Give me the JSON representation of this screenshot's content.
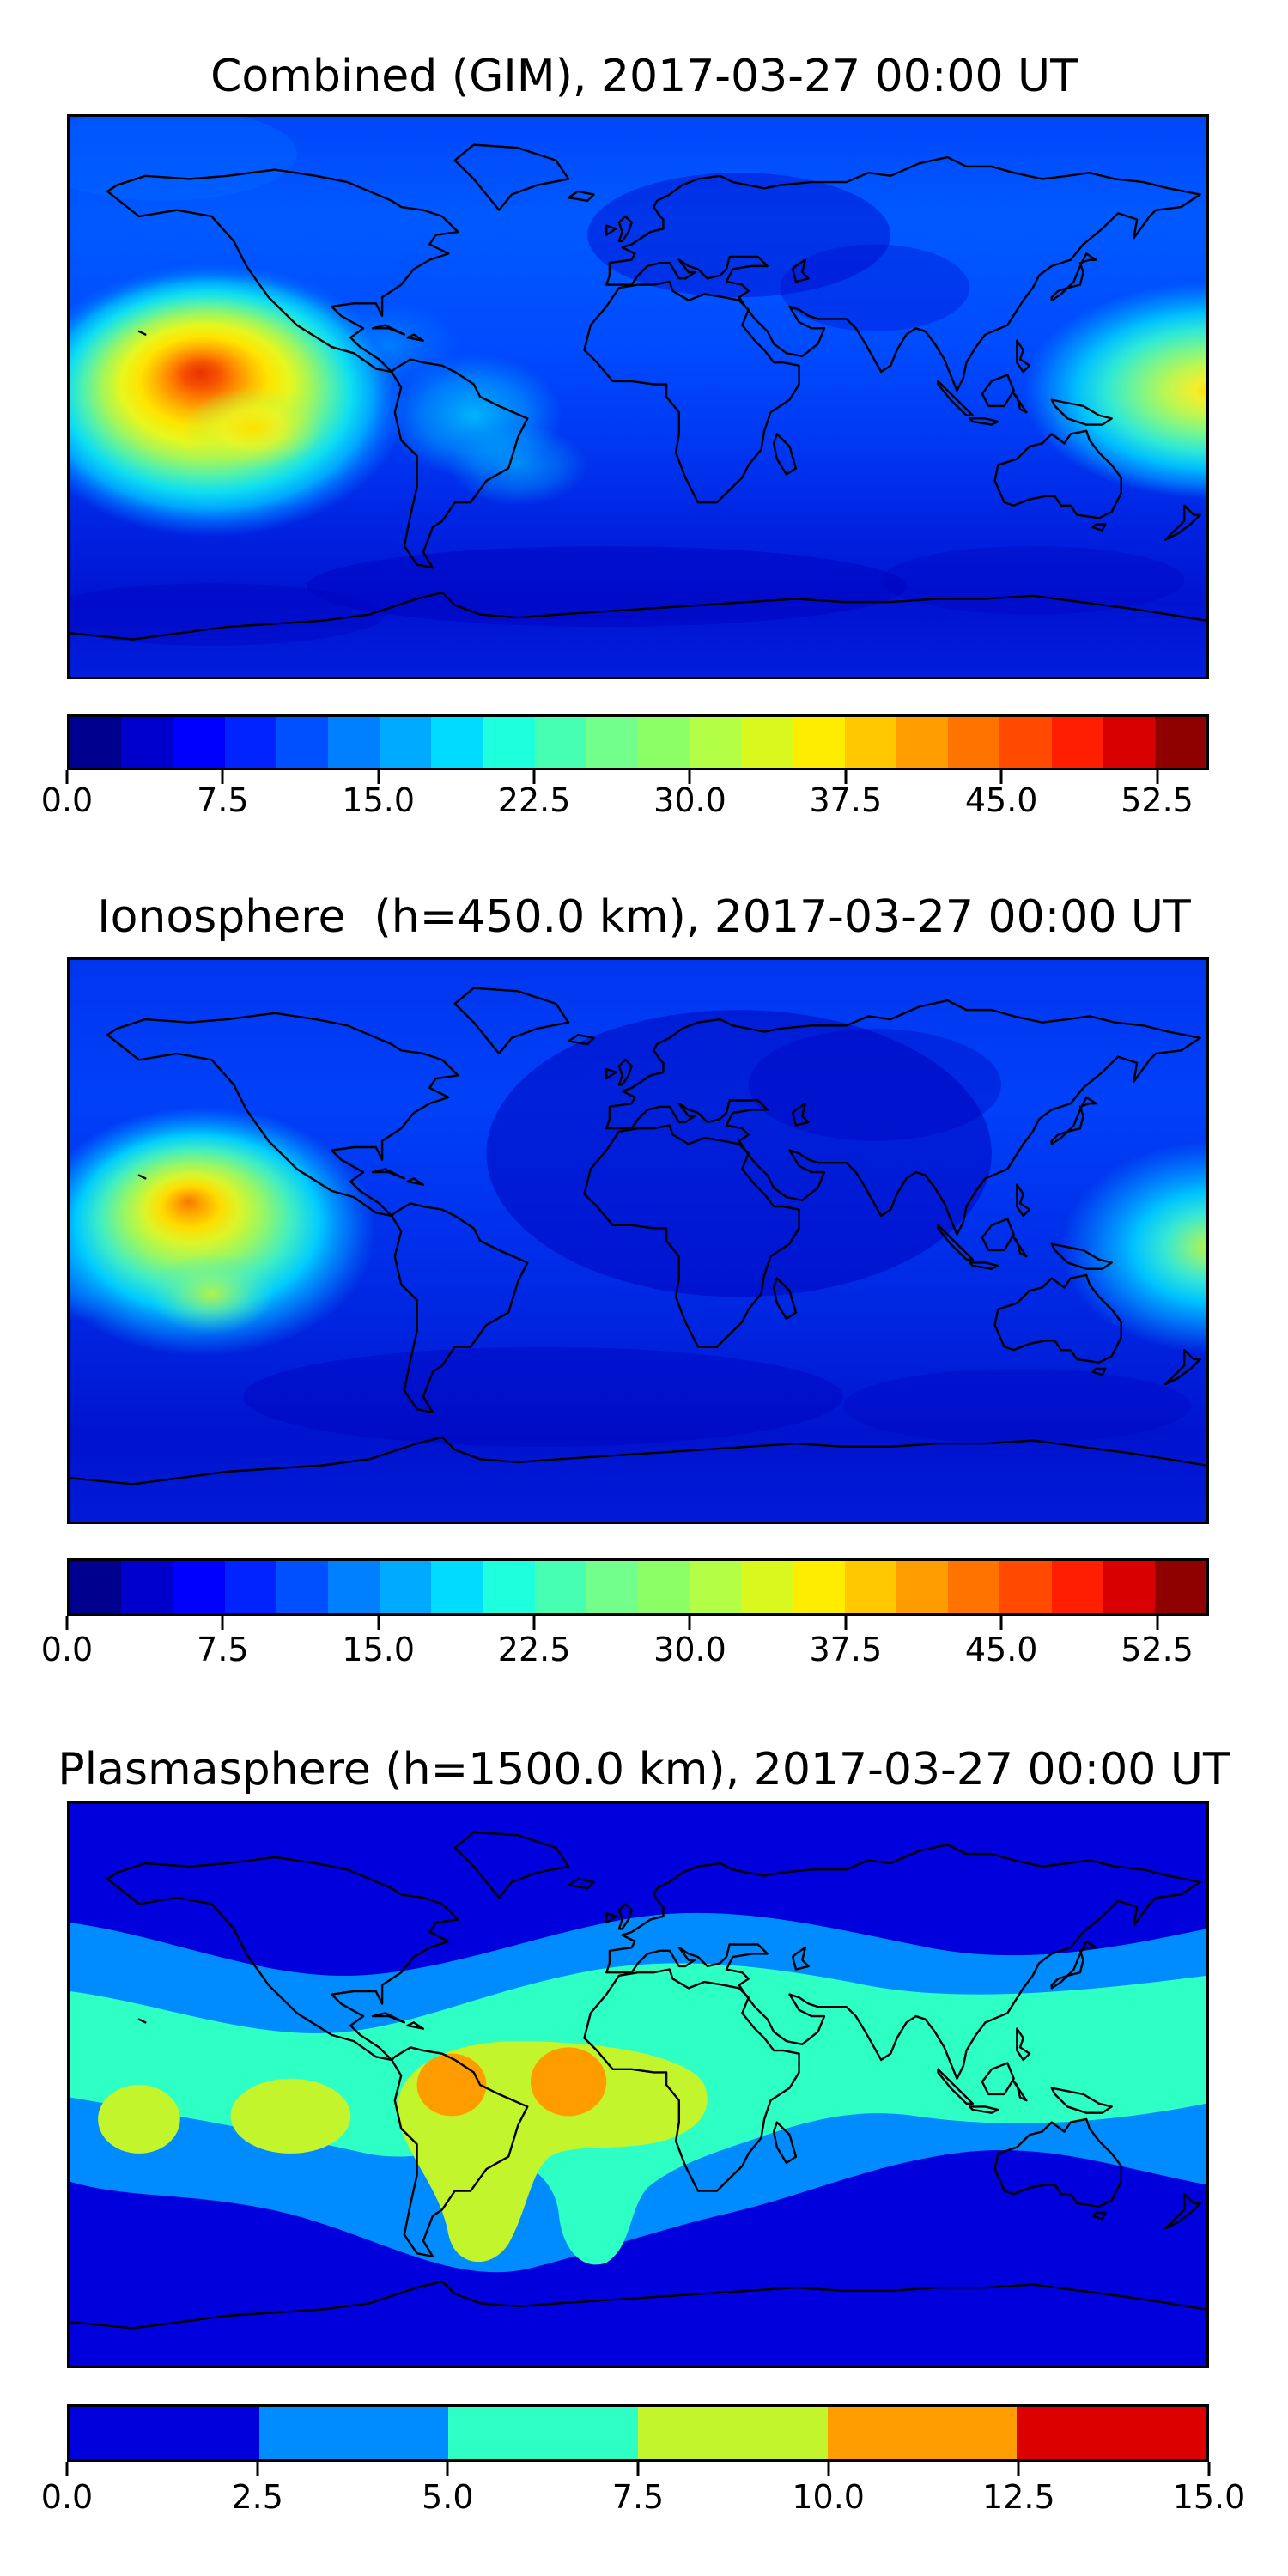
{
  "chart_data": [
    {
      "type": "heatmap",
      "subtype": "filled-contour-world-map",
      "title": "Combined (GIM), 2017-03-27 00:00 UT",
      "projection": "equirectangular",
      "lon_range": [
        -180,
        180
      ],
      "lat_range": [
        -90,
        90
      ],
      "colormap": "jet (discrete)",
      "value_range": [
        0,
        55
      ],
      "contour_step": 2.5,
      "grid": "off",
      "legend": "horizontal colorbar below map",
      "colorbar": {
        "orientation": "horizontal",
        "tick_values": [
          0,
          7.5,
          15,
          22.5,
          30,
          37.5,
          45,
          52.5
        ],
        "tick_labels": [
          "0.0",
          "7.5",
          "15.0",
          "22.5",
          "30.0",
          "37.5",
          "45.0",
          "52.5"
        ],
        "segment_colors": [
          "#00008F",
          "#0000CC",
          "#0000FF",
          "#0023FF",
          "#0050FF",
          "#0080FF",
          "#00AAFF",
          "#00DCFF",
          "#1EFFDE",
          "#47FFB0",
          "#72FF8C",
          "#8CFF66",
          "#B2FF46",
          "#D8F81E",
          "#FFED00",
          "#FFC800",
          "#FF9C00",
          "#FF7300",
          "#FF4A00",
          "#FF1E00",
          "#D80000",
          "#8F0000"
        ]
      },
      "features": [
        {
          "label": "primary peak (equatorial anomaly, east Pacific)",
          "lon": -139,
          "lat": 8,
          "approx_value": 53
        },
        {
          "label": "secondary enhancement near dateline / west Pacific",
          "lon": 178,
          "lat": -2,
          "approx_value": 40
        },
        {
          "label": "background minimum over Europe-Africa sector and southern mid-latitudes",
          "lon": 20,
          "lat": -45,
          "approx_value": 4
        }
      ]
    },
    {
      "type": "heatmap",
      "subtype": "filled-contour-world-map",
      "title": "Ionosphere  (h=450.0 km), 2017-03-27 00:00 UT",
      "projection": "equirectangular",
      "lon_range": [
        -180,
        180
      ],
      "lat_range": [
        -90,
        90
      ],
      "colormap": "jet (discrete)",
      "value_range": [
        0,
        55
      ],
      "contour_step": 2.5,
      "grid": "off",
      "legend": "horizontal colorbar below map",
      "colorbar": {
        "orientation": "horizontal",
        "tick_values": [
          0,
          7.5,
          15,
          22.5,
          30,
          37.5,
          45,
          52.5
        ],
        "tick_labels": [
          "0.0",
          "7.5",
          "15.0",
          "22.5",
          "30.0",
          "37.5",
          "45.0",
          "52.5"
        ],
        "segment_colors": [
          "#00008F",
          "#0000CC",
          "#0000FF",
          "#0023FF",
          "#0050FF",
          "#0080FF",
          "#00AAFF",
          "#00DCFF",
          "#1EFFDE",
          "#47FFB0",
          "#72FF8C",
          "#8CFF66",
          "#B2FF46",
          "#D8F81E",
          "#FFED00",
          "#FFC800",
          "#FF9C00",
          "#FF7300",
          "#FF4A00",
          "#FF1E00",
          "#D80000",
          "#8F0000"
        ]
      },
      "features": [
        {
          "label": "primary peak (east Pacific, weaker than combined map)",
          "lon": -138,
          "lat": 9,
          "approx_value": 44
        },
        {
          "label": "secondary enhancement at map right edge near dateline",
          "lon": 180,
          "lat": -3,
          "approx_value": 32
        },
        {
          "label": "deep minimum over Europe / Africa / Indian Ocean sector",
          "lon": 30,
          "lat": 10,
          "approx_value": 3
        }
      ]
    },
    {
      "type": "heatmap",
      "subtype": "filled-contour-world-map",
      "title": "Plasmasphere (h=1500.0 km), 2017-03-27 00:00 UT",
      "projection": "equirectangular",
      "lon_range": [
        -180,
        180
      ],
      "lat_range": [
        -90,
        90
      ],
      "colormap": "jet (discrete, 6 levels)",
      "value_range": [
        0,
        15
      ],
      "contour_step": 2.5,
      "grid": "off",
      "legend": "horizontal colorbar below map",
      "colorbar": {
        "orientation": "horizontal",
        "tick_values": [
          0,
          2.5,
          5,
          7.5,
          10,
          12.5,
          15
        ],
        "tick_labels": [
          "0.0",
          "2.5",
          "5.0",
          "7.5",
          "10.0",
          "12.5",
          "15.0"
        ],
        "segment_colors": [
          "#0000DD",
          "#008CFF",
          "#2EFFC4",
          "#C3F52D",
          "#FF9C00",
          "#DC0000"
        ]
      },
      "features": [
        {
          "label": "plasmaspheric equatorial band (5–7.5 range) spanning all longitudes",
          "lon": 0,
          "lat": 0,
          "approx_value": 6
        },
        {
          "label": "enhanced patch over northern South America",
          "lon": -60,
          "lat": 1,
          "approx_value": 11
        },
        {
          "label": "enhanced patch over mid-Atlantic / west Africa",
          "lon": -21,
          "lat": 1,
          "approx_value": 11
        },
        {
          "label": "yellow-green enhancement band South America / Atlantic sector",
          "lon": -45,
          "lat": -5,
          "approx_value": 8.5
        },
        {
          "label": "polar background minimum",
          "lon": 0,
          "lat": 75,
          "approx_value": 1.5
        }
      ]
    }
  ]
}
